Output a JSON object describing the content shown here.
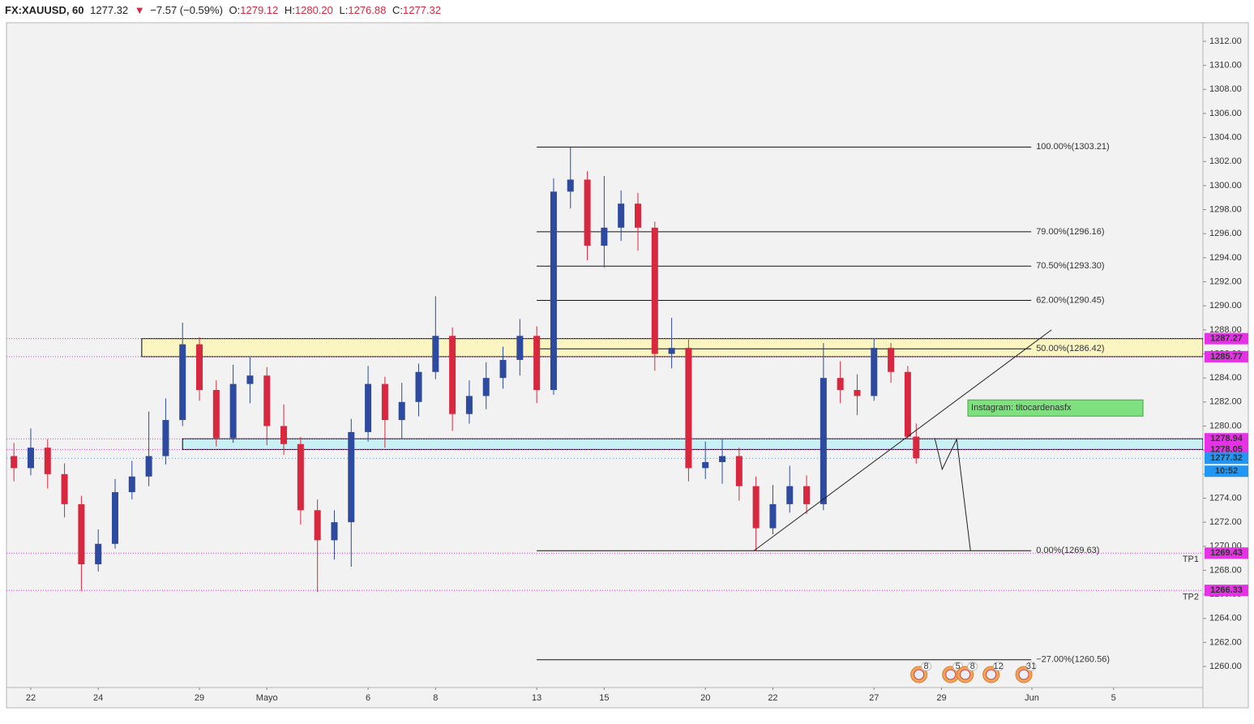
{
  "header": {
    "symbol": "FX:XAUUSD, 60",
    "last": "1277.32",
    "arrow": "▼",
    "change": "−7.57 (−0.59%)",
    "ohlc": [
      {
        "key": "O:",
        "value": "1279.12"
      },
      {
        "key": "H:",
        "value": "1280.20"
      },
      {
        "key": "L:",
        "value": "1276.88"
      },
      {
        "key": "C:",
        "value": "1277.32"
      }
    ]
  },
  "chart_data": {
    "type": "candlestick",
    "x": [
      -0.5,
      0,
      0.5,
      1,
      1.5,
      2,
      2.5,
      3,
      3.5,
      4,
      4.5,
      5,
      5.5,
      6,
      6.5,
      7,
      7.5,
      8,
      8.5,
      9,
      9.5,
      10,
      10.5,
      11,
      11.5,
      12,
      12.5,
      13,
      13.5,
      14,
      14.5,
      15,
      15.5,
      16,
      16.5,
      17,
      17.5,
      18,
      18.5,
      19,
      19.5,
      20,
      20.5,
      21,
      21.5,
      22,
      22.5,
      23,
      23.5,
      24,
      24.5,
      25,
      25.5,
      26,
      26.25
    ],
    "open": [
      1277.5,
      1276.5,
      1278.2,
      1276.0,
      1273.5,
      1268.5,
      1270.2,
      1274.5,
      1275.8,
      1277.5,
      1280.5,
      1286.8,
      1283.0,
      1279.0,
      1283.5,
      1284.2,
      1280.0,
      1278.5,
      1273.0,
      1270.5,
      1272.0,
      1279.5,
      1283.5,
      1280.5,
      1282.0,
      1284.5,
      1287.5,
      1281.0,
      1282.5,
      1284.0,
      1285.5,
      1287.5,
      1283.0,
      1299.5,
      1300.5,
      1295.0,
      1296.5,
      1298.5,
      1296.5,
      1286.0,
      1286.5,
      1276.5,
      1277.0,
      1277.5,
      1275.0,
      1271.5,
      1273.5,
      1275.0,
      1273.5,
      1284.0,
      1283.0,
      1282.5,
      1286.5,
      1284.5,
      1279.12
    ],
    "high": [
      1278.6,
      1279.8,
      1278.9,
      1276.9,
      1274.2,
      1271.4,
      1275.6,
      1277.1,
      1281.2,
      1282.3,
      1288.6,
      1287.4,
      1283.8,
      1285.1,
      1285.7,
      1284.9,
      1281.8,
      1279.1,
      1273.9,
      1273.0,
      1280.6,
      1285.0,
      1284.1,
      1283.6,
      1285.2,
      1290.8,
      1288.2,
      1283.8,
      1285.3,
      1286.6,
      1288.9,
      1288.3,
      1300.6,
      1303.2,
      1301.2,
      1300.8,
      1299.6,
      1299.4,
      1297.0,
      1289.0,
      1287.2,
      1278.7,
      1278.9,
      1278.2,
      1275.8,
      1275.1,
      1276.7,
      1275.9,
      1286.9,
      1285.4,
      1284.3,
      1287.3,
      1286.9,
      1285.0,
      1280.2
    ],
    "low": [
      1275.4,
      1275.9,
      1274.8,
      1272.4,
      1266.3,
      1267.9,
      1269.8,
      1273.9,
      1275.0,
      1276.8,
      1280.0,
      1282.1,
      1278.3,
      1278.6,
      1281.9,
      1278.4,
      1277.6,
      1271.8,
      1266.2,
      1268.9,
      1268.3,
      1278.7,
      1278.2,
      1278.9,
      1280.8,
      1283.9,
      1279.6,
      1280.2,
      1281.4,
      1283.1,
      1284.2,
      1281.9,
      1282.6,
      1298.1,
      1293.8,
      1293.2,
      1295.4,
      1294.6,
      1284.6,
      1284.8,
      1275.4,
      1275.6,
      1275.2,
      1273.8,
      1269.6,
      1271.0,
      1272.8,
      1272.7,
      1273.0,
      1281.9,
      1280.9,
      1282.1,
      1283.6,
      1278.9,
      1276.88
    ],
    "close": [
      1276.5,
      1278.2,
      1276.0,
      1273.5,
      1268.5,
      1270.2,
      1274.5,
      1275.8,
      1277.5,
      1280.5,
      1286.8,
      1283.0,
      1279.0,
      1283.5,
      1284.2,
      1280.0,
      1278.5,
      1273.0,
      1270.5,
      1272.0,
      1279.5,
      1283.5,
      1280.5,
      1282.0,
      1284.5,
      1287.5,
      1281.0,
      1282.5,
      1284.0,
      1285.5,
      1287.5,
      1283.0,
      1299.5,
      1300.5,
      1295.0,
      1296.5,
      1298.5,
      1296.5,
      1286.0,
      1286.5,
      1276.5,
      1277.0,
      1277.5,
      1275.0,
      1271.5,
      1273.5,
      1275.0,
      1273.5,
      1284.0,
      1283.0,
      1282.5,
      1286.5,
      1284.5,
      1279.12,
      1277.32
    ],
    "up_color": "#2e4a9e",
    "down_color": "#d8283f",
    "xlim": [
      -0.72,
      34.75
    ],
    "xticks": [
      {
        "value": 0,
        "label": "22"
      },
      {
        "value": 2,
        "label": "24"
      },
      {
        "value": 5,
        "label": "29"
      },
      {
        "value": 7,
        "label": "Mayo"
      },
      {
        "value": 10,
        "label": "6"
      },
      {
        "value": 12,
        "label": "8"
      },
      {
        "value": 15,
        "label": "13"
      },
      {
        "value": 17,
        "label": "15"
      },
      {
        "value": 20,
        "label": "20"
      },
      {
        "value": 22,
        "label": "22"
      },
      {
        "value": 25,
        "label": "27"
      },
      {
        "value": 27,
        "label": "29"
      },
      {
        "value": 29.68,
        "label": "Jun"
      },
      {
        "value": 32.1,
        "label": "5"
      }
    ],
    "ylim": [
      1258.25,
      1313.55
    ],
    "yticks": [
      {
        "value": 1260,
        "label": "1260.00"
      },
      {
        "value": 1262,
        "label": "1262.00"
      },
      {
        "value": 1264,
        "label": "1264.00"
      },
      {
        "value": 1266,
        "label": "1266.00"
      },
      {
        "value": 1268,
        "label": "1268.00"
      },
      {
        "value": 1270,
        "label": "1270.00"
      },
      {
        "value": 1272,
        "label": "1272.00"
      },
      {
        "value": 1274,
        "label": "1274.00"
      },
      {
        "value": 1276,
        "label": "1276.00"
      },
      {
        "value": 1278,
        "label": "1278.00"
      },
      {
        "value": 1280,
        "label": "1280.00"
      },
      {
        "value": 1282,
        "label": "1282.00"
      },
      {
        "value": 1284,
        "label": "1284.00"
      },
      {
        "value": 1286,
        "label": "1286.00"
      },
      {
        "value": 1288,
        "label": "1288.00"
      },
      {
        "value": 1290,
        "label": "1290.00"
      },
      {
        "value": 1292,
        "label": "1292.00"
      },
      {
        "value": 1294,
        "label": "1294.00"
      },
      {
        "value": 1296,
        "label": "1296.00"
      },
      {
        "value": 1298,
        "label": "1298.00"
      },
      {
        "value": 1300,
        "label": "1300.00"
      },
      {
        "value": 1302,
        "label": "1302.00"
      },
      {
        "value": 1304,
        "label": "1304.00"
      },
      {
        "value": 1306,
        "label": "1306.00"
      },
      {
        "value": 1308,
        "label": "1308.00"
      },
      {
        "value": 1310,
        "label": "1310.00"
      },
      {
        "value": 1312,
        "label": "1312.00"
      }
    ],
    "levels": [
      1287.27,
      1285.77,
      1278.94,
      1278.05,
      1269.43,
      1266.33
    ],
    "level_color": "#e532e6",
    "zones": [
      {
        "x0": 3.29,
        "y": [
          1287.27,
          1285.77
        ],
        "color": "#fbf5c2"
      },
      {
        "x0": 4.5,
        "y": [
          1278.94,
          1278.05
        ],
        "color": "#c9f1f5"
      }
    ],
    "fib": {
      "x0": 15,
      "x1": 29.66,
      "levels": [
        {
          "value": 1303.21,
          "label": "100.00%(1303.21)"
        },
        {
          "value": 1296.16,
          "label": "79.00%(1296.16)"
        },
        {
          "value": 1293.3,
          "label": "70.50%(1293.30)"
        },
        {
          "value": 1290.45,
          "label": "62.00%(1290.45)"
        },
        {
          "value": 1286.42,
          "label": "50.00%(1286.42)"
        },
        {
          "value": 1269.63,
          "label": "0.00%(1269.63)"
        },
        {
          "value": 1260.56,
          "label": "−27.00%(1260.56)"
        }
      ]
    },
    "last_price": 1277.32,
    "last_color": "#2196f3",
    "countdown": "10:52",
    "trendline": {
      "x": [
        21.44,
        30.26
      ],
      "y": [
        1269.63,
        1288.0
      ]
    },
    "projection": {
      "x": [
        26.8,
        27.02,
        27.45,
        27.86
      ],
      "y": [
        1279.0,
        1276.4,
        1278.9,
        1269.6
      ]
    },
    "targets": [
      {
        "label": "TP1",
        "y": 1268.9
      },
      {
        "label": "TP2",
        "y": 1265.75
      }
    ],
    "annotation": {
      "text": "Instagram: titocardenasfx",
      "x": 27.83,
      "y": 1281.5
    },
    "events": [
      {
        "x": 26.33,
        "label": "8"
      },
      {
        "x": 27.27,
        "label": "5"
      },
      {
        "x": 27.7,
        "label": "8"
      },
      {
        "x": 28.47,
        "label": "12"
      },
      {
        "x": 29.44,
        "label": "31"
      }
    ]
  }
}
